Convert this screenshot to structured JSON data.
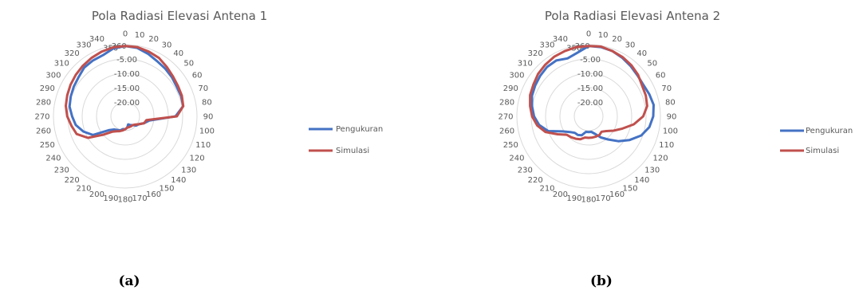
{
  "colors": {
    "pengukuran": "#4472C4",
    "simulasi": "#C0504D",
    "grid": "#D9D9D9",
    "text": "#595959"
  },
  "chart_data": [
    {
      "type": "polar-line",
      "title": "Pola Radiasi Elevasi Antena 1",
      "caption": "(a)",
      "angle_labels": [
        "0",
        "10",
        "20",
        "30",
        "40",
        "50",
        "60",
        "70",
        "80",
        "90",
        "100",
        "110",
        "120",
        "130",
        "140",
        "150",
        "160",
        "170",
        "180",
        "190",
        "200",
        "210",
        "220",
        "230",
        "240",
        "250",
        "260",
        "270",
        "280",
        "290",
        "300",
        "310",
        "320",
        "330",
        "340",
        "350",
        "360"
      ],
      "radial_labels": [
        "-5.00",
        "-10.00",
        "-15.00",
        "-20.00"
      ],
      "r_range": [
        -25,
        0
      ],
      "r_ticks": [
        0,
        -5,
        -10,
        -15,
        -20,
        -25
      ],
      "legend": {
        "position": "right",
        "entries": [
          "Pengukuran",
          "Simulasi"
        ]
      },
      "angles": [
        0,
        10,
        20,
        30,
        40,
        50,
        60,
        70,
        80,
        90,
        100,
        110,
        120,
        130,
        140,
        150,
        160,
        170,
        180,
        190,
        200,
        210,
        220,
        230,
        240,
        250,
        260,
        270,
        280,
        290,
        300,
        310,
        320,
        330,
        340,
        350
      ],
      "series": [
        {
          "name": "Pengukuran",
          "values": [
            -0.5,
            -0.8,
            -1.8,
            -2.8,
            -3.3,
            -3.8,
            -4.3,
            -4.3,
            -4.5,
            -7.5,
            -16.5,
            -18.0,
            -19.5,
            -20.0,
            -21.0,
            -21.5,
            -22.0,
            -21.0,
            -20.5,
            -20.5,
            -19.8,
            -19.5,
            -19.0,
            -17.5,
            -12.0,
            -9.5,
            -7.5,
            -6.5,
            -5.3,
            -4.8,
            -4.3,
            -3.8,
            -2.8,
            -2.5,
            -2.3,
            -1.0
          ]
        },
        {
          "name": "Simulasi",
          "values": [
            -0.5,
            -0.5,
            -1.0,
            -1.5,
            -2.5,
            -3.3,
            -3.8,
            -4.0,
            -4.5,
            -7.0,
            -17.5,
            -18.0,
            -19.5,
            -20.5,
            -21.0,
            -21.0,
            -21.0,
            -21.0,
            -20.5,
            -20.0,
            -19.5,
            -19.0,
            -18.0,
            -15.0,
            -10.0,
            -7.0,
            -6.0,
            -4.8,
            -4.0,
            -3.5,
            -3.0,
            -2.5,
            -2.0,
            -1.5,
            -1.0,
            -0.6
          ]
        }
      ]
    },
    {
      "type": "polar-line",
      "title": "Pola Radiasi Elevasi Antena 2",
      "caption": "(b)",
      "angle_labels": [
        "0",
        "10",
        "20",
        "30",
        "40",
        "50",
        "60",
        "70",
        "80",
        "90",
        "100",
        "110",
        "120",
        "130",
        "140",
        "150",
        "160",
        "170",
        "180",
        "190",
        "200",
        "210",
        "220",
        "230",
        "240",
        "250",
        "260",
        "270",
        "280",
        "290",
        "300",
        "310",
        "320",
        "330",
        "340",
        "350",
        "360"
      ],
      "radial_labels": [
        "-5.00",
        "-10.00",
        "-15.00",
        "-20.00"
      ],
      "r_range": [
        -25,
        0
      ],
      "r_ticks": [
        0,
        -5,
        -10,
        -15,
        -20,
        -25
      ],
      "legend": {
        "position": "right",
        "entries": [
          "Pengukuran",
          "Simulasi"
        ]
      },
      "angles": [
        0,
        10,
        20,
        30,
        40,
        50,
        60,
        70,
        80,
        90,
        100,
        110,
        120,
        130,
        140,
        150,
        160,
        170,
        180,
        190,
        200,
        210,
        220,
        230,
        240,
        250,
        260,
        270,
        280,
        290,
        300,
        310,
        320,
        330,
        340,
        350
      ],
      "series": [
        {
          "name": "Pengukuran",
          "values": [
            -0.5,
            -0.5,
            -0.8,
            -1.5,
            -2.2,
            -2.8,
            -3.0,
            -2.5,
            -2.0,
            -2.5,
            -3.5,
            -5.5,
            -8.5,
            -11.5,
            -14.5,
            -16.5,
            -18.5,
            -19.5,
            -19.5,
            -19.5,
            -18.0,
            -17.5,
            -17.5,
            -16.5,
            -14.5,
            -10.0,
            -7.5,
            -6.0,
            -5.0,
            -4.0,
            -3.5,
            -3.0,
            -2.5,
            -2.5,
            -3.5,
            -2.5
          ]
        },
        {
          "name": "Simulasi",
          "values": [
            -0.5,
            -0.3,
            -0.8,
            -1.2,
            -1.8,
            -2.5,
            -3.5,
            -3.8,
            -4.3,
            -6.0,
            -9.0,
            -12.5,
            -15.0,
            -17.0,
            -18.0,
            -17.5,
            -17.5,
            -17.5,
            -17.5,
            -17.5,
            -16.5,
            -16.0,
            -15.5,
            -15.0,
            -12.5,
            -9.0,
            -6.8,
            -5.3,
            -4.3,
            -3.3,
            -2.8,
            -2.0,
            -1.5,
            -1.0,
            -0.8,
            -0.5
          ]
        }
      ]
    }
  ]
}
